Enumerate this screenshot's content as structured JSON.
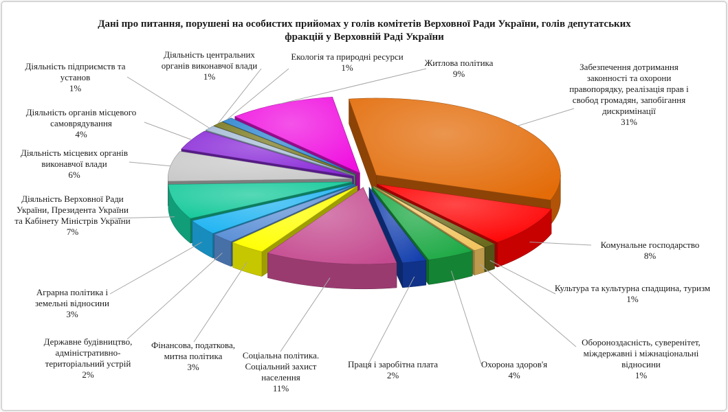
{
  "chart_data": {
    "type": "pie",
    "title": "Дані про питання, порушені на особистих прийомах у голів комітетів Верховної Ради України, голів депутатських фракцій у Верховній Раді України",
    "slices": [
      {
        "id": "zakonnist",
        "label": "Забезпечення дотримання законності та охорони правопорядку, реалізація прав і свобод громадян, запобігання дискримінації",
        "value": 31,
        "display": "31%",
        "color": "#E36C09"
      },
      {
        "id": "komunalne",
        "label": "Комунальне господарство",
        "value": 8,
        "display": "8%",
        "color": "#FF0000"
      },
      {
        "id": "kultura",
        "label": "Культура та культурна спадщина, туризм",
        "value": 1,
        "display": "1%",
        "color": "#6B6B1E"
      },
      {
        "id": "oborona",
        "label": "Обороноздасність, суверенітет, міждержавні і міжнаціональні відносини",
        "value": 1,
        "display": "1%",
        "color": "#F2C561"
      },
      {
        "id": "zdorovia",
        "label": "Охорона здоров'я",
        "value": 4,
        "display": "4%",
        "color": "#1BA843"
      },
      {
        "id": "pratsia",
        "label": "Праця і заробітна плата",
        "value": 2,
        "display": "2%",
        "color": "#1440AE"
      },
      {
        "id": "sotsialna",
        "label": "Соціальна політика. Соціальний захист населення",
        "value": 11,
        "display": "11%",
        "color": "#C54B90"
      },
      {
        "id": "finansova",
        "label": "Фінансова, податкова, митна політика",
        "value": 3,
        "display": "3%",
        "color": "#FFFF00"
      },
      {
        "id": "derzhbud",
        "label": "Державне будівництво, адміністративно-територіальний устрій",
        "value": 2,
        "display": "2%",
        "color": "#5B8FD6"
      },
      {
        "id": "agrarna",
        "label": "Аграрна політика і земельні відносини",
        "value": 3,
        "display": "3%",
        "color": "#1FB4F2"
      },
      {
        "id": "vru",
        "label": "Діяльність Верховної Ради України, Президента України та Кабінету Міністрів України",
        "value": 7,
        "display": "7%",
        "color": "#14C99A"
      },
      {
        "id": "mistsevi_organy",
        "label": "Діяльність місцевих органів виконавчої влади",
        "value": 6,
        "display": "6%",
        "color": "#C9C9C9"
      },
      {
        "id": "samovriaduvannia",
        "label": "Діяльність органів місцевого самоврядування",
        "value": 4,
        "display": "4%",
        "color": "#8A2BD8"
      },
      {
        "id": "pidpryiemstva",
        "label": "Діяльність підприємств та установ",
        "value": 1,
        "display": "1%",
        "color": "#A6BDD6"
      },
      {
        "id": "tsentralni_organy",
        "label": "Діяльність центральних органів виконавчої влади",
        "value": 1,
        "display": "1%",
        "color": "#7A7A20"
      },
      {
        "id": "ekolohiia",
        "label": "Екологія та природні ресурси",
        "value": 1,
        "display": "1%",
        "color": "#2E86D0"
      },
      {
        "id": "zhytlova",
        "label": "Житлова політика",
        "value": 9,
        "display": "9%",
        "color": "#F010E0"
      }
    ]
  }
}
